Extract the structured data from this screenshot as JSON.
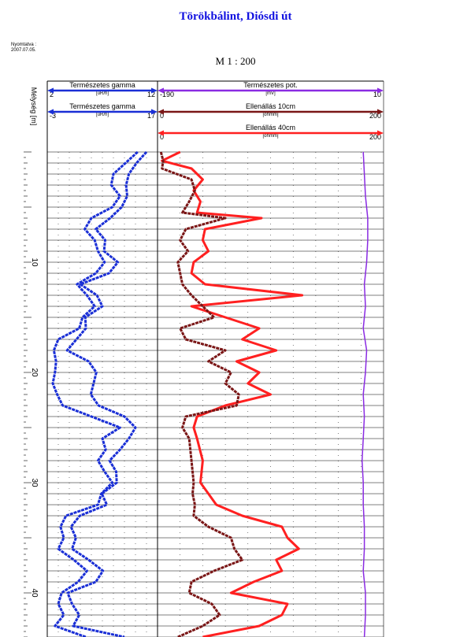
{
  "title": "Törökbálint, Diósdi út",
  "printed": {
    "label": "Nyomtatva :",
    "date": "2007.07.05."
  },
  "scale": "M  1 : 200",
  "depth_axis_label": "Mélység [m]",
  "colors": {
    "gamma": "#1a2fd6",
    "gamma_dark": "#0d1a8a",
    "sp": "#8a2be2",
    "res10": "#7a1616",
    "res40": "#ff2020",
    "title": "#1010e0"
  },
  "chart_data": {
    "type": "line",
    "depth_range": [
      0,
      44.5
    ],
    "depth_ticks": [
      10,
      20,
      30,
      40
    ],
    "grid": true,
    "tracks": [
      {
        "name": "gamma",
        "headers": [
          {
            "curve": "Természetes gamma",
            "unit": "[uR/h]",
            "min": "2",
            "max": "12"
          },
          {
            "curve": "Természetes gamma",
            "unit": "[uR/h]",
            "min": "-3",
            "max": "17"
          }
        ],
        "series": [
          {
            "name": "Természetes gamma",
            "scale": [
              2,
              12
            ],
            "color": "#1a2fd6",
            "depth": [
              0,
              1,
              2,
              3,
              4,
              5,
              6,
              7,
              8,
              9,
              10,
              11,
              12,
              13,
              14,
              15,
              16,
              17,
              18,
              19,
              20,
              21,
              22,
              23,
              24,
              25,
              26,
              27,
              28,
              29,
              30,
              31,
              32,
              33,
              34,
              35,
              36,
              37,
              38,
              39,
              40,
              41,
              42,
              43,
              44
            ],
            "values": [
              10.2,
              9.1,
              8.0,
              7.8,
              8.6,
              7.9,
              6.0,
              5.4,
              6.3,
              6.6,
              7.2,
              6.4,
              4.7,
              5.6,
              6.3,
              5.2,
              4.9,
              3.0,
              2.6,
              2.8,
              2.7,
              2.5,
              2.9,
              3.4,
              6.0,
              8.6,
              7.0,
              7.3,
              6.6,
              7.2,
              7.9,
              6.9,
              6.6,
              3.7,
              3.2,
              3.5,
              3.0,
              4.4,
              5.6,
              4.8,
              3.3,
              3.0,
              3.5,
              2.7,
              5.5
            ]
          },
          {
            "name": "Természetes gamma",
            "scale": [
              -3,
              17
            ],
            "color": "#1a2fd6",
            "depth": [
              0,
              1,
              2,
              3,
              4,
              5,
              6,
              7,
              8,
              9,
              10,
              11,
              12,
              13,
              14,
              15,
              16,
              17,
              18,
              19,
              20,
              21,
              22,
              23,
              24,
              25,
              26,
              27,
              28,
              29,
              30,
              31,
              32,
              33,
              34,
              35,
              36,
              37,
              38,
              39,
              40,
              41,
              42,
              43,
              44
            ],
            "values": [
              15.0,
              13.2,
              11.8,
              11.3,
              11.5,
              10.5,
              8.4,
              5.8,
              7.5,
              7.3,
              9.8,
              8.2,
              3.0,
              6.0,
              7.0,
              3.9,
              4.0,
              2.3,
              0.6,
              4.5,
              5.9,
              5.4,
              4.9,
              6.3,
              11.0,
              13.0,
              11.8,
              10.2,
              8.3,
              9.5,
              9.6,
              6.9,
              7.8,
              2.9,
              1.3,
              2.2,
              1.5,
              4.5,
              7.1,
              5.8,
              0.7,
              1.5,
              2.8,
              1.7,
              11.0
            ]
          }
        ]
      },
      {
        "name": "potential-resistivity",
        "headers": [
          {
            "curve": "Természetes pot.",
            "unit": "[mV]",
            "min": "-190",
            "max": "10"
          },
          {
            "curve": "Ellenállás 10cm",
            "unit": "[ohmm]",
            "min": "0",
            "max": "200"
          },
          {
            "curve": "Ellenállás 40cm",
            "unit": "[ohmm]",
            "min": "0",
            "max": "200"
          }
        ],
        "series": [
          {
            "name": "Természetes pot.",
            "scale": [
              -190,
              10
            ],
            "color": "#8a2be2",
            "depth": [
              0,
              2,
              4,
              6,
              8,
              10,
              12,
              14,
              16,
              18,
              20,
              22,
              24,
              26,
              28,
              30,
              32,
              34,
              36,
              38,
              40,
              42,
              44
            ],
            "values": [
              -8,
              -7,
              -6,
              -4,
              -4,
              -5,
              -7,
              -6,
              -8,
              -5,
              -6,
              -8,
              -7,
              -8,
              -9,
              -8,
              -8,
              -7,
              -7,
              -8,
              -6,
              -6,
              -7
            ]
          },
          {
            "name": "Ellenállás 10cm",
            "scale": [
              0,
              200
            ],
            "color": "#7a1616",
            "depth": [
              0,
              0.8,
              1.5,
              2.5,
              3.5,
              4.5,
              5.5,
              6,
              7,
              8,
              9,
              10,
              11,
              12,
              13,
              14,
              15,
              16,
              17,
              18,
              19,
              20,
              21,
              22,
              23,
              24,
              25,
              26,
              28,
              30,
              31,
              32,
              33,
              34,
              35,
              36,
              37,
              38,
              39,
              40,
              41,
              42,
              43,
              44
            ],
            "values": [
              3,
              5,
              4,
              30,
              33,
              28,
              22,
              60,
              25,
              20,
              27,
              18,
              20,
              22,
              30,
              40,
              50,
              20,
              25,
              60,
              45,
              65,
              60,
              72,
              70,
              25,
              22,
              28,
              30,
              32,
              31,
              33,
              32,
              45,
              65,
              68,
              75,
              50,
              30,
              28,
              48,
              55,
              40,
              18
            ]
          },
          {
            "name": "Ellenállás 40cm",
            "scale": [
              0,
              200
            ],
            "color": "#ff2020",
            "depth": [
              0,
              0.8,
              1.5,
              2.5,
              3.5,
              4.5,
              5.5,
              6,
              7,
              8,
              9,
              10,
              11,
              12,
              13,
              14,
              15,
              16,
              17,
              18,
              19,
              20,
              21,
              22,
              23,
              24,
              25,
              26,
              28,
              30,
              31,
              32,
              33,
              34,
              35,
              36,
              37,
              38,
              39,
              40,
              41,
              42,
              43,
              44
            ],
            "values": [
              20,
              4,
              30,
              40,
              32,
              38,
              35,
              92,
              42,
              40,
              45,
              32,
              30,
              42,
              128,
              30,
              60,
              90,
              75,
              105,
              70,
              90,
              80,
              100,
              60,
              35,
              32,
              35,
              40,
              38,
              45,
              52,
              75,
              110,
              115,
              125,
              105,
              110,
              85,
              65,
              115,
              110,
              90,
              40
            ]
          }
        ]
      }
    ]
  }
}
